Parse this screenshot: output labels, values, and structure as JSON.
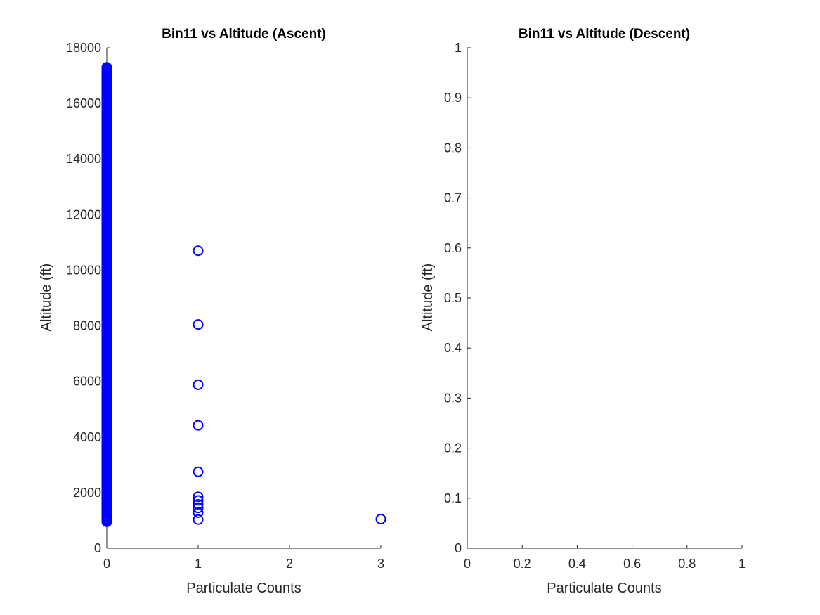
{
  "colors": {
    "series": "#0000ff",
    "axis": "#262626",
    "background": "#ffffff"
  },
  "chart_data": [
    {
      "type": "scatter",
      "title": "Bin11 vs Altitude (Ascent)",
      "xlabel": "Particulate Counts",
      "ylabel": "Altitude (ft)",
      "xlim": [
        0,
        3
      ],
      "ylim": [
        0,
        18000
      ],
      "xticks": [
        0,
        1,
        2,
        3
      ],
      "xtick_labels": [
        "0",
        "1",
        "2",
        "3"
      ],
      "yticks": [
        0,
        2000,
        4000,
        6000,
        8000,
        10000,
        12000,
        14000,
        16000,
        18000
      ],
      "ytick_labels": [
        "0",
        "2000",
        "4000",
        "6000",
        "8000",
        "10000",
        "12000",
        "14000",
        "16000",
        "18000"
      ],
      "grid": false,
      "marker": "open-circle",
      "dense_column": {
        "x": 0,
        "y_from": 950,
        "y_to": 17300,
        "y_step": 50
      },
      "series": [
        {
          "x": [
            1,
            1,
            1,
            1,
            1,
            1,
            1,
            1,
            1,
            1,
            1,
            3
          ],
          "y": [
            10700,
            8050,
            5880,
            4420,
            2750,
            1850,
            1720,
            1580,
            1450,
            1280,
            1030,
            1050
          ]
        }
      ]
    },
    {
      "type": "scatter",
      "title": "Bin11 vs Altitude (Descent)",
      "xlabel": "Particulate Counts",
      "ylabel": "Altitude (ft)",
      "xlim": [
        0,
        1
      ],
      "ylim": [
        0,
        1
      ],
      "xticks": [
        0,
        0.2,
        0.4,
        0.6,
        0.8,
        1
      ],
      "xtick_labels": [
        "0",
        "0.2",
        "0.4",
        "0.6",
        "0.8",
        "1"
      ],
      "yticks": [
        0,
        0.1,
        0.2,
        0.3,
        0.4,
        0.5,
        0.6,
        0.7,
        0.8,
        0.9,
        1
      ],
      "ytick_labels": [
        "0",
        "0.1",
        "0.2",
        "0.3",
        "0.4",
        "0.5",
        "0.6",
        "0.7",
        "0.8",
        "0.9",
        "1"
      ],
      "grid": false,
      "series": []
    }
  ]
}
